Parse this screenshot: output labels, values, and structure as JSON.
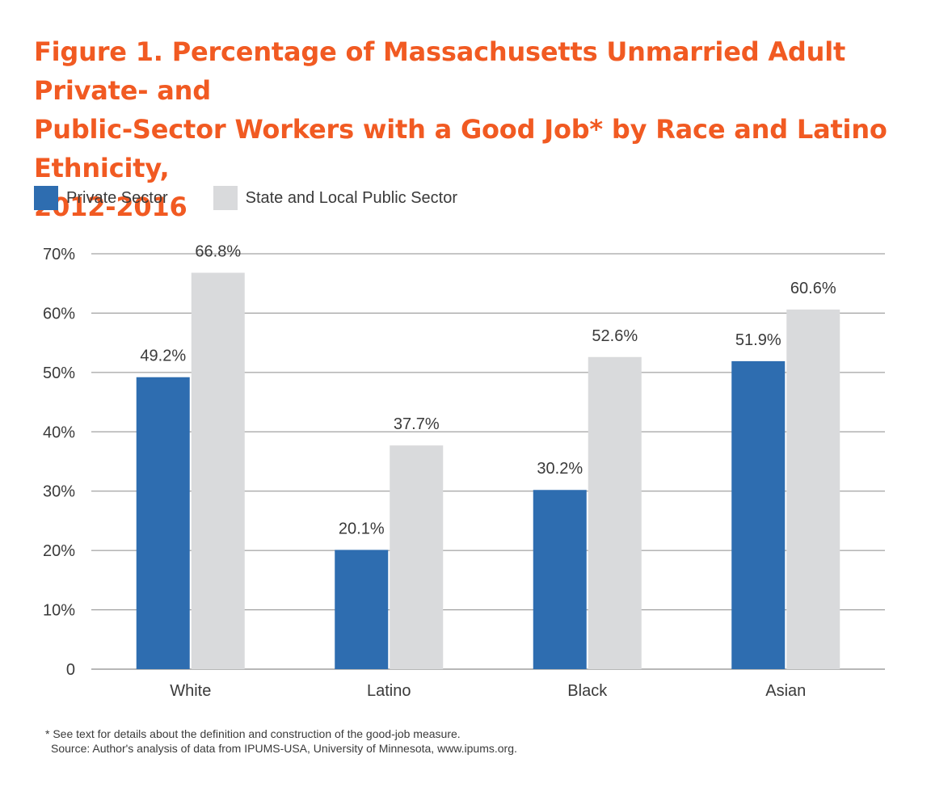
{
  "colors": {
    "title": "#f15a22",
    "private": "#2e6db0",
    "public": "#d9dadc",
    "gridline": "#8c8c8c",
    "text": "#3a3a3a"
  },
  "title_lines": [
    "Figure 1. Percentage of Massachusetts Unmarried Adult Private- and",
    "Public-Sector Workers with a Good Job* by Race and Latino Ethnicity,",
    "2012-2016"
  ],
  "footnotes": {
    "definition": "* See text for details about the definition and construction of the good-job measure.",
    "source": "Source: Author's analysis of data from IPUMS-USA, University of Minnesota, www.ipums.org."
  },
  "chart_data": {
    "type": "bar",
    "title": "Figure 1. Percentage of Massachusetts Unmarried Adult Private- and Public-Sector Workers with a Good Job* by Race and Latino Ethnicity, 2012-2016",
    "categories": [
      "White",
      "Latino",
      "Black",
      "Asian"
    ],
    "series": [
      {
        "name": "Private Sector",
        "values": [
          49.2,
          20.1,
          30.2,
          51.9
        ],
        "labels": [
          "49.2%",
          "20.1%",
          "30.2%",
          "51.9%"
        ]
      },
      {
        "name": "State and Local Public Sector",
        "values": [
          66.8,
          37.7,
          52.6,
          60.6
        ],
        "labels": [
          "66.8%",
          "37.7%",
          "52.6%",
          "60.6%"
        ]
      }
    ],
    "ylim": [
      0,
      70
    ],
    "yticks": [
      0,
      10,
      20,
      30,
      40,
      50,
      60,
      70
    ],
    "yticklabels": [
      "0",
      "10%",
      "20%",
      "30%",
      "40%",
      "50%",
      "60%",
      "70%"
    ],
    "xlabel": "",
    "ylabel": "",
    "grid": true,
    "legend_position": "top-left"
  }
}
